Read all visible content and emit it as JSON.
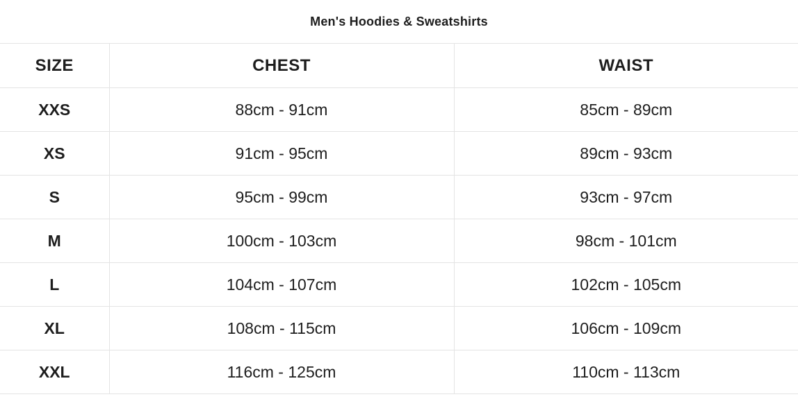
{
  "title": "Men's Hoodies & Sweatshirts",
  "colors": {
    "border": "#e4e4e4",
    "text": "#1d1d1d",
    "bg": "#ffffff"
  },
  "table": {
    "headers": {
      "size": "SIZE",
      "chest": "CHEST",
      "waist": "WAIST"
    },
    "rows": [
      {
        "size": "XXS",
        "chest": "88cm - 91cm",
        "waist": "85cm - 89cm"
      },
      {
        "size": "XS",
        "chest": "91cm - 95cm",
        "waist": "89cm - 93cm"
      },
      {
        "size": "S",
        "chest": "95cm - 99cm",
        "waist": "93cm - 97cm"
      },
      {
        "size": "M",
        "chest": "100cm - 103cm",
        "waist": "98cm - 101cm"
      },
      {
        "size": "L",
        "chest": "104cm - 107cm",
        "waist": "102cm - 105cm"
      },
      {
        "size": "XL",
        "chest": "108cm - 115cm",
        "waist": "106cm - 109cm"
      },
      {
        "size": "XXL",
        "chest": "116cm - 125cm",
        "waist": "110cm - 113cm"
      }
    ]
  }
}
